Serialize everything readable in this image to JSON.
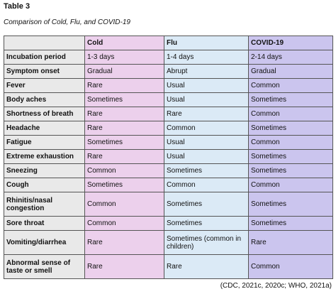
{
  "title": "Table 3",
  "caption": "Comparison of Cold, Flu, and COVID-19",
  "colors": {
    "cold": "#ecd0ec",
    "flu": "#dbeaf6",
    "covid": "#cbc5ee",
    "row_header": "#e9e9e9"
  },
  "columns": [
    "",
    "Cold",
    "Flu",
    "COVID-19"
  ],
  "rows": [
    {
      "symptom": "Incubation period",
      "cold": "1-3 days",
      "flu": "1-4 days",
      "covid": "2-14 days"
    },
    {
      "symptom": "Symptom onset",
      "cold": "Gradual",
      "flu": "Abrupt",
      "covid": "Gradual"
    },
    {
      "symptom": "Fever",
      "cold": "Rare",
      "flu": "Usual",
      "covid": "Common"
    },
    {
      "symptom": "Body aches",
      "cold": "Sometimes",
      "flu": "Usual",
      "covid": "Sometimes"
    },
    {
      "symptom": "Shortness of breath",
      "cold": "Rare",
      "flu": "Rare",
      "covid": "Common"
    },
    {
      "symptom": "Headache",
      "cold": "Rare",
      "flu": "Common",
      "covid": "Sometimes"
    },
    {
      "symptom": "Fatigue",
      "cold": "Sometimes",
      "flu": "Usual",
      "covid": "Common"
    },
    {
      "symptom": "Extreme exhaustion",
      "cold": "Rare",
      "flu": "Usual",
      "covid": "Sometimes"
    },
    {
      "symptom": "Sneezing",
      "cold": "Common",
      "flu": "Sometimes",
      "covid": "Sometimes"
    },
    {
      "symptom": "Cough",
      "cold": "Sometimes",
      "flu": "Common",
      "covid": "Common"
    },
    {
      "symptom": "Rhinitis/nasal congestion",
      "cold": "Common",
      "flu": "Sometimes",
      "covid": "Sometimes"
    },
    {
      "symptom": "Sore throat",
      "cold": "Common",
      "flu": "Sometimes",
      "covid": "Sometimes"
    },
    {
      "symptom": "Vomiting/diarrhea",
      "cold": "Rare",
      "flu": "Sometimes (common in children)",
      "covid": "Rare"
    },
    {
      "symptom": "Abnormal sense of taste or smell",
      "cold": "Rare",
      "flu": "Rare",
      "covid": "Common"
    }
  ],
  "source": "(CDC, 2021c, 2020c; WHO, 2021a)"
}
